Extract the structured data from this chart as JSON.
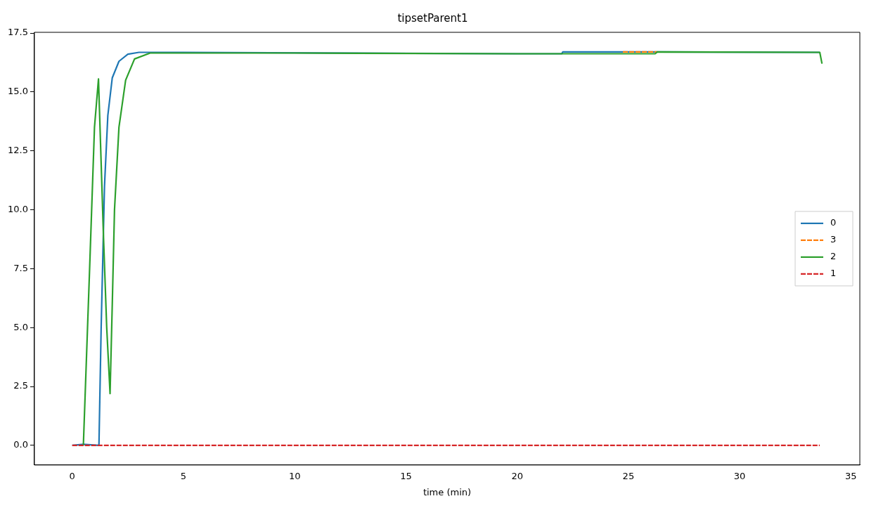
{
  "chart_data": {
    "type": "line",
    "title": "tipsetParent1",
    "xlabel": "time (min)",
    "xlim": [
      -1.7,
      35.4
    ],
    "xticks": [
      0,
      5,
      10,
      15,
      20,
      25,
      30,
      35
    ],
    "ylim": [
      -0.83,
      17.53
    ],
    "yticks": [
      {
        "value": 0,
        "label": "0.0"
      },
      {
        "value": 2.5,
        "label": "2.5"
      },
      {
        "value": 5,
        "label": "5.0"
      },
      {
        "value": 7.5,
        "label": "7.5"
      },
      {
        "value": 10,
        "label": "10.0"
      },
      {
        "value": 12.5,
        "label": "12.5"
      },
      {
        "value": 15,
        "label": "15.0"
      },
      {
        "value": 17.5,
        "label": "17.5"
      }
    ],
    "grid": false,
    "legend": "right",
    "marker": "none",
    "series": [
      {
        "name": "0",
        "color": "#1f77b4",
        "line_style": "solid",
        "x": [
          0,
          0.5,
          1.2,
          1.3,
          1.45,
          1.6,
          1.8,
          2.1,
          2.5,
          3,
          5,
          20,
          22,
          22.05,
          26.3,
          33.6
        ],
        "values": [
          0,
          0.05,
          0,
          5,
          11,
          14,
          15.6,
          16.3,
          16.6,
          16.68,
          16.68,
          16.62,
          16.62,
          16.7,
          16.7,
          16.68
        ]
      },
      {
        "name": "3",
        "color": "#ff7f0e",
        "line_style": "dashed",
        "x": [
          24.75,
          26.3
        ],
        "values": [
          16.7,
          16.7
        ]
      },
      {
        "name": "2",
        "color": "#2ca02c",
        "line_style": "solid",
        "x": [
          0.5,
          0.8,
          1,
          1.18,
          1.4,
          1.55,
          1.7,
          1.8,
          1.9,
          2.1,
          2.4,
          2.8,
          3.5,
          10,
          20,
          26.2,
          26.3,
          33.6,
          33.7
        ],
        "values": [
          0,
          8,
          13.5,
          15.55,
          9,
          5,
          2.2,
          6,
          10,
          13.5,
          15.5,
          16.4,
          16.65,
          16.65,
          16.62,
          16.62,
          16.7,
          16.68,
          16.2
        ]
      },
      {
        "name": "1",
        "color": "#d62728",
        "line_style": "dashed",
        "x": [
          0,
          33.6
        ],
        "values": [
          0,
          0
        ]
      }
    ]
  }
}
